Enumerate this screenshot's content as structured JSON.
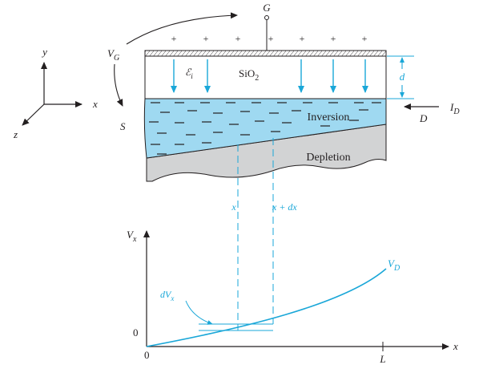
{
  "labels": {
    "gate": "G",
    "vg": "V",
    "vg_sub": "G",
    "source": "S",
    "y_axis": "y",
    "x_axis": "x",
    "z_axis": "z",
    "ei_symbol": "ℰ",
    "ei_sub": "i",
    "sio2": "SiO",
    "sio2_sub": "2",
    "thickness": "d",
    "inversion": "Inversion",
    "depletion": "Depletion",
    "id": "I",
    "id_sub": "D",
    "drain": "D",
    "plus_sign": "+",
    "minus_sign": "−",
    "x_mark": "x",
    "x_dx_mark": "x + dx",
    "plot_y": "V",
    "plot_y_sub": "x",
    "plot_x": "x",
    "vd": "V",
    "vd_sub": "D",
    "dvx": "dV",
    "dvx_sub": "x",
    "zero_y": "0",
    "zero_x": "0",
    "L": "L"
  },
  "colors": {
    "cyan": "#1aa7d8",
    "inversion_fill": "#9fd9f1",
    "depletion_fill": "#d2d3d4",
    "ink": "#231f20"
  }
}
